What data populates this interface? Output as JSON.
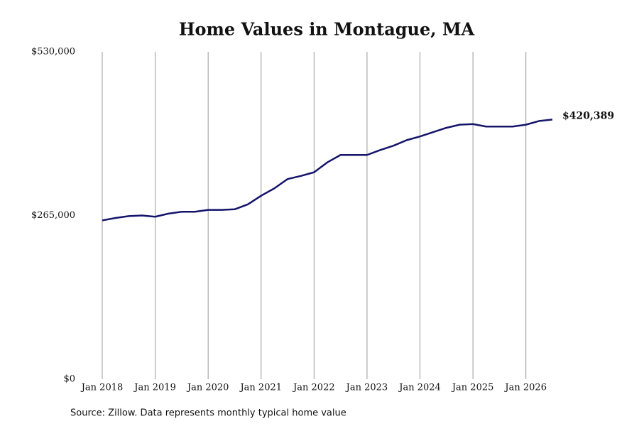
{
  "chart_data": {
    "type": "line",
    "title": "Home Values in Montague, MA",
    "source": "Source: Zillow. Data represents monthly typical home value",
    "x": [
      "2018-01",
      "2018-04",
      "2018-07",
      "2018-10",
      "2019-01",
      "2019-04",
      "2019-07",
      "2019-10",
      "2020-01",
      "2020-04",
      "2020-07",
      "2020-10",
      "2021-01",
      "2021-04",
      "2021-07",
      "2021-10",
      "2022-01",
      "2022-04",
      "2022-07",
      "2022-10",
      "2023-01",
      "2023-04",
      "2023-07",
      "2023-10",
      "2024-01",
      "2024-04",
      "2024-07",
      "2024-10",
      "2025-01",
      "2025-04",
      "2025-07",
      "2025-10",
      "2026-01",
      "2026-04",
      "2026-07"
    ],
    "series": [
      {
        "name": "Montague, MA",
        "color": "#14146b",
        "values": [
          257000,
          261000,
          264000,
          265000,
          263000,
          268000,
          271000,
          271000,
          274000,
          274000,
          275000,
          283000,
          297000,
          309000,
          324000,
          329000,
          335000,
          351000,
          363000,
          363000,
          363000,
          371000,
          378000,
          387000,
          393000,
          400000,
          407000,
          412000,
          413000,
          409000,
          409000,
          409000,
          412000,
          418000,
          420389
        ],
        "value_labels": [
          null,
          null,
          null,
          null,
          null,
          null,
          null,
          null,
          null,
          null,
          null,
          null,
          null,
          null,
          null,
          null,
          null,
          null,
          null,
          null,
          null,
          null,
          null,
          null,
          null,
          null,
          null,
          null,
          null,
          null,
          null,
          null,
          null,
          null,
          "$420,389"
        ]
      }
    ],
    "xticks": [
      {
        "value": "2018-01",
        "label": "Jan 2018"
      },
      {
        "value": "2019-01",
        "label": "Jan 2019"
      },
      {
        "value": "2020-01",
        "label": "Jan 2020"
      },
      {
        "value": "2021-01",
        "label": "Jan 2021"
      },
      {
        "value": "2022-01",
        "label": "Jan 2022"
      },
      {
        "value": "2023-01",
        "label": "Jan 2023"
      },
      {
        "value": "2024-01",
        "label": "Jan 2024"
      },
      {
        "value": "2025-01",
        "label": "Jan 2025"
      },
      {
        "value": "2026-01",
        "label": "Jan 2026"
      }
    ],
    "ylim": [
      0,
      530000
    ],
    "yticks": [
      {
        "value": 0,
        "label": "$0"
      },
      {
        "value": 265000,
        "label": "$265,000"
      },
      {
        "value": 530000,
        "label": "$530,000"
      }
    ],
    "grid": "x"
  }
}
